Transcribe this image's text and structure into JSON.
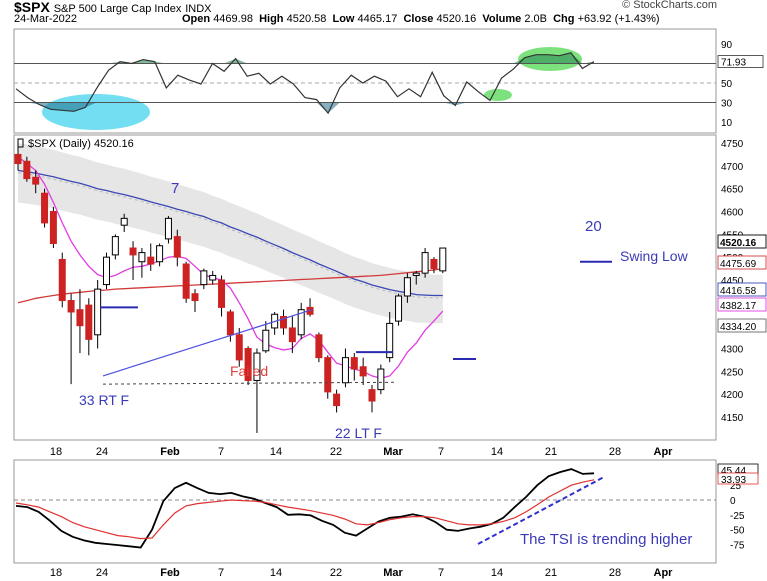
{
  "header": {
    "symbol": "$SPX",
    "description": "S&P 500 Large Cap Index",
    "exchange": "INDX",
    "date": "24-Mar-2022",
    "open_label": "Open",
    "open": "4469.98",
    "high_label": "High",
    "high": "4520.58",
    "low_label": "Low",
    "low": "4465.17",
    "close_label": "Close",
    "close": "4520.16",
    "volume_label": "Volume",
    "volume": "2.0B",
    "chg_label": "Chg",
    "chg": "+63.92 (+1.43%)",
    "credit": "© StockCharts.com"
  },
  "chart_data": [
    {
      "type": "line",
      "panel": "rsi",
      "y_ticks": [
        "90",
        "70",
        "50",
        "30",
        "10"
      ],
      "ylim": [
        0,
        100
      ],
      "reference_lines": [
        70,
        50,
        30
      ],
      "last_value": "71.93",
      "values": [
        44,
        35,
        28,
        23,
        22,
        21,
        25,
        45,
        63,
        72,
        70,
        74,
        72,
        45,
        58,
        53,
        49,
        70,
        62,
        75,
        57,
        60,
        49,
        57,
        49,
        35,
        33,
        19,
        45,
        58,
        50,
        57,
        52,
        36,
        44,
        36,
        61,
        37,
        27,
        51,
        41,
        32,
        55,
        64,
        76,
        79,
        79,
        78,
        81,
        65,
        72
      ],
      "line_color": "#333333",
      "highlights": [
        {
          "shape": "ellipse",
          "color": "#5bd8ef",
          "location": "late January low"
        },
        {
          "shape": "ellipse",
          "color": "#66dd66",
          "location": "mid March"
        },
        {
          "shape": "ellipse",
          "color": "#66dd66",
          "location": "late March high"
        }
      ]
    },
    {
      "type": "candlestick",
      "panel": "price",
      "title": "$SPX (Daily) 4520.16",
      "y_ticks": [
        "4750",
        "4700",
        "4650",
        "4600",
        "4550",
        "4500",
        "4450",
        "4400",
        "4350",
        "4300",
        "4250",
        "4200",
        "4150"
      ],
      "ylim": [
        4110,
        4775
      ],
      "x_ticks": [
        "18",
        "24",
        "Feb",
        "7",
        "14",
        "22",
        "Mar",
        "7",
        "14",
        "21",
        "28",
        "Apr"
      ],
      "candles": [
        {
          "o": 4725,
          "h": 4745,
          "l": 4690,
          "c": 4705
        },
        {
          "o": 4710,
          "h": 4720,
          "l": 4665,
          "c": 4672
        },
        {
          "o": 4675,
          "h": 4690,
          "l": 4640,
          "c": 4660
        },
        {
          "o": 4640,
          "h": 4650,
          "l": 4565,
          "c": 4575
        },
        {
          "o": 4600,
          "h": 4610,
          "l": 4520,
          "c": 4530
        },
        {
          "o": 4495,
          "h": 4510,
          "l": 4390,
          "c": 4405
        },
        {
          "o": 4405,
          "h": 4420,
          "l": 4222,
          "c": 4380
        },
        {
          "o": 4385,
          "h": 4430,
          "l": 4290,
          "c": 4350
        },
        {
          "o": 4395,
          "h": 4410,
          "l": 4285,
          "c": 4320
        },
        {
          "o": 4330,
          "h": 4450,
          "l": 4300,
          "c": 4430
        },
        {
          "o": 4440,
          "h": 4510,
          "l": 4430,
          "c": 4500
        },
        {
          "o": 4505,
          "h": 4550,
          "l": 4495,
          "c": 4545
        },
        {
          "o": 4570,
          "h": 4595,
          "l": 4555,
          "c": 4585
        },
        {
          "o": 4520,
          "h": 4535,
          "l": 4450,
          "c": 4505
        },
        {
          "o": 4490,
          "h": 4520,
          "l": 4455,
          "c": 4510
        },
        {
          "o": 4500,
          "h": 4530,
          "l": 4470,
          "c": 4485
        },
        {
          "o": 4490,
          "h": 4530,
          "l": 4480,
          "c": 4525
        },
        {
          "o": 4540,
          "h": 4590,
          "l": 4530,
          "c": 4585
        },
        {
          "o": 4545,
          "h": 4560,
          "l": 4480,
          "c": 4500
        },
        {
          "o": 4485,
          "h": 4490,
          "l": 4400,
          "c": 4410
        },
        {
          "o": 4420,
          "h": 4430,
          "l": 4380,
          "c": 4405
        },
        {
          "o": 4440,
          "h": 4475,
          "l": 4430,
          "c": 4470
        },
        {
          "o": 4450,
          "h": 4470,
          "l": 4440,
          "c": 4460
        },
        {
          "o": 4450,
          "h": 4460,
          "l": 4370,
          "c": 4390
        },
        {
          "o": 4380,
          "h": 4385,
          "l": 4315,
          "c": 4330
        },
        {
          "o": 4330,
          "h": 4345,
          "l": 4260,
          "c": 4275
        },
        {
          "o": 4300,
          "h": 4305,
          "l": 4220,
          "c": 4230
        },
        {
          "o": 4230,
          "h": 4300,
          "l": 4115,
          "c": 4290
        },
        {
          "o": 4295,
          "h": 4360,
          "l": 4290,
          "c": 4340
        },
        {
          "o": 4345,
          "h": 4380,
          "l": 4330,
          "c": 4375
        },
        {
          "o": 4370,
          "h": 4385,
          "l": 4330,
          "c": 4345
        },
        {
          "o": 4345,
          "h": 4370,
          "l": 4290,
          "c": 4315
        },
        {
          "o": 4330,
          "h": 4400,
          "l": 4320,
          "c": 4385
        },
        {
          "o": 4390,
          "h": 4410,
          "l": 4370,
          "c": 4375
        },
        {
          "o": 4330,
          "h": 4335,
          "l": 4270,
          "c": 4280
        },
        {
          "o": 4280,
          "h": 4285,
          "l": 4190,
          "c": 4205
        },
        {
          "o": 4200,
          "h": 4210,
          "l": 4160,
          "c": 4175
        },
        {
          "o": 4225,
          "h": 4300,
          "l": 4215,
          "c": 4280
        },
        {
          "o": 4280,
          "h": 4290,
          "l": 4230,
          "c": 4255
        },
        {
          "o": 4260,
          "h": 4280,
          "l": 4220,
          "c": 4240
        },
        {
          "o": 4210,
          "h": 4220,
          "l": 4160,
          "c": 4185
        },
        {
          "o": 4210,
          "h": 4265,
          "l": 4200,
          "c": 4255
        },
        {
          "o": 4280,
          "h": 4380,
          "l": 4270,
          "c": 4355
        },
        {
          "o": 4360,
          "h": 4420,
          "l": 4350,
          "c": 4415
        },
        {
          "o": 4415,
          "h": 4465,
          "l": 4400,
          "c": 4455
        },
        {
          "o": 4460,
          "h": 4470,
          "l": 4440,
          "c": 4465
        },
        {
          "o": 4465,
          "h": 4520,
          "l": 4455,
          "c": 4510
        },
        {
          "o": 4495,
          "h": 4500,
          "l": 4465,
          "c": 4475
        },
        {
          "o": 4470,
          "h": 4520,
          "l": 4465,
          "c": 4520
        }
      ],
      "overlays": [
        {
          "legend": "4416.58",
          "color": "#3a48b4",
          "values": [
            4690,
            4687,
            4684,
            4680,
            4676,
            4671,
            4666,
            4662,
            4656,
            4650,
            4646,
            4641,
            4637,
            4632,
            4627,
            4621,
            4616,
            4611,
            4605,
            4600,
            4594,
            4589,
            4581,
            4575,
            4566,
            4559,
            4551,
            4544,
            4535,
            4527,
            4519,
            4510,
            4502,
            4494,
            4485,
            4477,
            4469,
            4460,
            4452,
            4446,
            4439,
            4434,
            4429,
            4425,
            4422,
            4418,
            4417,
            4416,
            4416
          ]
        },
        {
          "legend": "4475.69",
          "color": "#d03a3a",
          "values": [
            4400,
            4405,
            4410,
            4413,
            4416,
            4419,
            4421,
            4423,
            4425,
            4427,
            4428,
            4430,
            4431,
            4432,
            4433,
            4434,
            4435,
            4436,
            4437,
            4438,
            4439,
            4440,
            4441,
            4442,
            4443,
            4444,
            4445,
            4446,
            4447,
            4448,
            4449,
            4450,
            4451,
            4452,
            4453,
            4454,
            4455,
            4456,
            4457,
            4458,
            4459,
            4460,
            4462,
            4464,
            4466,
            4468,
            4470,
            4472,
            4475
          ]
        },
        {
          "legend": "4382.17",
          "color": "#e13ce2",
          "values": [
            4720,
            4705,
            4690,
            4660,
            4620,
            4575,
            4535,
            4505,
            4480,
            4462,
            4455,
            4460,
            4470,
            4478,
            4480,
            4485,
            4492,
            4500,
            4502,
            4497,
            4480,
            4462,
            4455,
            4450,
            4432,
            4400,
            4365,
            4325,
            4310,
            4302,
            4297,
            4300,
            4322,
            4332,
            4318,
            4292,
            4268,
            4262,
            4255,
            4250,
            4240,
            4235,
            4240,
            4262,
            4292,
            4312,
            4340,
            4360,
            4382
          ]
        }
      ],
      "band": {
        "upper": "4520.16",
        "lower": "4334.20",
        "color": "#dddddd"
      },
      "last_value_labels": [
        "4520.16",
        "4475.69",
        "4416.58",
        "4382.17",
        "4334.20"
      ],
      "annotations": {
        "label_7": "7",
        "label_20": "20",
        "swing_low": "Swing Low",
        "failed": "Failed",
        "rt_f": "33 RT F",
        "lt_f": "22 LT F"
      }
    },
    {
      "type": "line",
      "panel": "tsi",
      "y_ticks": [
        "25",
        "0",
        "-25",
        "-50",
        "-75"
      ],
      "ylim": [
        -95,
        58
      ],
      "last_values": [
        "45.44",
        "33.93"
      ],
      "series": [
        {
          "color": "#000000",
          "values": [
            -10,
            -12,
            -20,
            -35,
            -52,
            -62,
            -68,
            -72,
            -74,
            -76,
            -78,
            -80,
            -50,
            -2,
            20,
            29,
            20,
            12,
            10,
            12,
            6,
            2,
            -5,
            -12,
            -25,
            -24,
            -26,
            -35,
            -42,
            -55,
            -60,
            -48,
            -36,
            -30,
            -28,
            -24,
            -28,
            -37,
            -50,
            -52,
            -48,
            -45,
            -40,
            -30,
            -12,
            5,
            25,
            40,
            47,
            52,
            44,
            45
          ]
        },
        {
          "color": "#e03030",
          "values": [
            -5,
            -8,
            -12,
            -20,
            -28,
            -38,
            -45,
            -50,
            -55,
            -60,
            -62,
            -65,
            -64,
            -42,
            -22,
            -10,
            -6,
            -4,
            -2,
            0,
            -1,
            -2,
            -4,
            -8,
            -12,
            -15,
            -18,
            -22,
            -26,
            -32,
            -40,
            -42,
            -38,
            -33,
            -30,
            -28,
            -28,
            -30,
            -35,
            -40,
            -42,
            -42,
            -40,
            -36,
            -30,
            -20,
            -8,
            5,
            15,
            25,
            30,
            34
          ]
        }
      ],
      "annotations": {
        "trend_text": "The TSI is trending higher"
      }
    }
  ]
}
